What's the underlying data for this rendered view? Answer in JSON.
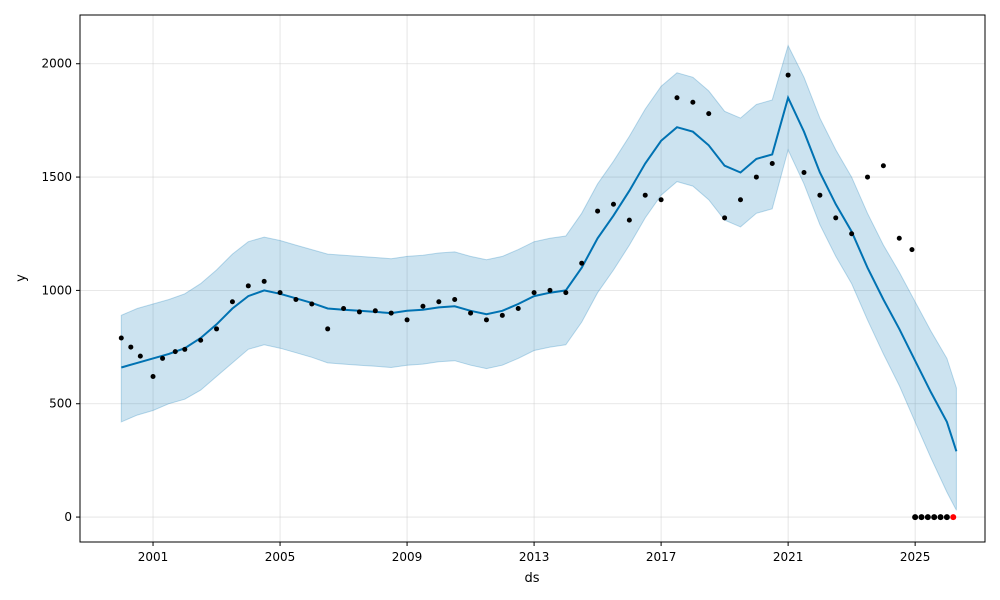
{
  "chart_data": {
    "type": "line",
    "title": "",
    "xlabel": "ds",
    "ylabel": "y",
    "xlim": [
      1998.7,
      2027.2
    ],
    "ylim": [
      -110,
      2215
    ],
    "grid": true,
    "x_ticks": [
      2001,
      2005,
      2009,
      2013,
      2017,
      2021,
      2025
    ],
    "x_tick_labels": [
      "2001",
      "2005",
      "2009",
      "2013",
      "2017",
      "2021",
      "2025"
    ],
    "y_ticks": [
      0,
      500,
      1000,
      1500,
      2000
    ],
    "y_tick_labels": [
      "0",
      "500",
      "1000",
      "1500",
      "2000"
    ],
    "colors": {
      "forecast_line": "#0072b2",
      "uncertainty_band": "#0072b2",
      "observed_points": "#000000",
      "future_points": "#ff0000",
      "grid": "#cccccc"
    },
    "series": [
      {
        "role": "forecast",
        "x": [
          2000.0,
          2000.5,
          2001.0,
          2001.5,
          2002.0,
          2002.5,
          2003.0,
          2003.5,
          2004.0,
          2004.5,
          2005.0,
          2005.5,
          2006.0,
          2006.5,
          2007.0,
          2007.5,
          2008.0,
          2008.5,
          2009.0,
          2009.5,
          2010.0,
          2010.5,
          2011.0,
          2011.5,
          2012.0,
          2012.5,
          2013.0,
          2013.5,
          2014.0,
          2014.5,
          2015.0,
          2015.5,
          2016.0,
          2016.5,
          2017.0,
          2017.5,
          2018.0,
          2018.5,
          2019.0,
          2019.5,
          2020.0,
          2020.5,
          2021.0,
          2021.5,
          2022.0,
          2022.5,
          2023.0,
          2023.5,
          2024.0,
          2024.5,
          2025.0,
          2025.5,
          2026.0,
          2026.3
        ],
        "y": [
          660,
          680,
          700,
          720,
          745,
          790,
          850,
          920,
          975,
          1000,
          985,
          965,
          945,
          920,
          915,
          910,
          905,
          900,
          910,
          915,
          925,
          930,
          910,
          895,
          910,
          940,
          975,
          990,
          1000,
          1100,
          1230,
          1330,
          1440,
          1560,
          1660,
          1720,
          1700,
          1640,
          1550,
          1520,
          1580,
          1600,
          1850,
          1700,
          1520,
          1380,
          1260,
          1100,
          960,
          830,
          690,
          550,
          420,
          290
        ],
        "y_lower": [
          420,
          450,
          470,
          500,
          520,
          560,
          620,
          680,
          740,
          760,
          745,
          725,
          705,
          680,
          675,
          670,
          665,
          660,
          670,
          675,
          685,
          690,
          670,
          655,
          670,
          700,
          735,
          750,
          760,
          860,
          990,
          1090,
          1200,
          1320,
          1420,
          1480,
          1460,
          1400,
          1310,
          1280,
          1340,
          1360,
          1620,
          1470,
          1290,
          1150,
          1030,
          870,
          720,
          580,
          420,
          260,
          110,
          30
        ],
        "y_upper": [
          890,
          920,
          940,
          960,
          985,
          1030,
          1090,
          1160,
          1215,
          1235,
          1220,
          1200,
          1180,
          1160,
          1155,
          1150,
          1145,
          1140,
          1150,
          1155,
          1165,
          1170,
          1150,
          1135,
          1150,
          1180,
          1215,
          1230,
          1240,
          1340,
          1470,
          1570,
          1680,
          1800,
          1900,
          1960,
          1940,
          1880,
          1790,
          1760,
          1820,
          1840,
          2080,
          1940,
          1760,
          1620,
          1500,
          1340,
          1200,
          1080,
          950,
          820,
          700,
          570
        ]
      },
      {
        "role": "observed",
        "x": [
          2000.0,
          2000.3,
          2000.6,
          2001.0,
          2001.3,
          2001.7,
          2002.0,
          2002.5,
          2003.0,
          2003.5,
          2004.0,
          2004.5,
          2005.0,
          2005.5,
          2006.0,
          2006.5,
          2007.0,
          2007.5,
          2008.0,
          2008.5,
          2009.0,
          2009.5,
          2010.0,
          2010.5,
          2011.0,
          2011.5,
          2012.0,
          2012.5,
          2013.0,
          2013.5,
          2014.0,
          2014.5,
          2015.0,
          2015.5,
          2016.0,
          2016.5,
          2017.0,
          2017.5,
          2018.0,
          2018.5,
          2019.0,
          2019.5,
          2020.0,
          2020.5,
          2021.0,
          2021.5,
          2022.0,
          2022.5,
          2023.0,
          2023.5,
          2024.0,
          2024.5,
          2024.9
        ],
        "y": [
          790,
          750,
          710,
          620,
          700,
          730,
          740,
          780,
          830,
          950,
          1020,
          1040,
          990,
          960,
          940,
          830,
          920,
          905,
          910,
          900,
          870,
          930,
          950,
          960,
          900,
          870,
          890,
          920,
          990,
          1000,
          990,
          1120,
          1350,
          1380,
          1310,
          1420,
          1400,
          1850,
          1830,
          1780,
          1320,
          1400,
          1500,
          1560,
          1950,
          1520,
          1420,
          1320,
          1250,
          1500,
          1550,
          1230,
          1180
        ]
      },
      {
        "role": "future",
        "x": [
          2025.0,
          2025.2,
          2025.4,
          2025.6,
          2025.8,
          2026.0,
          2026.2
        ],
        "y": [
          0,
          0,
          0,
          0,
          0,
          0,
          0
        ]
      }
    ]
  }
}
